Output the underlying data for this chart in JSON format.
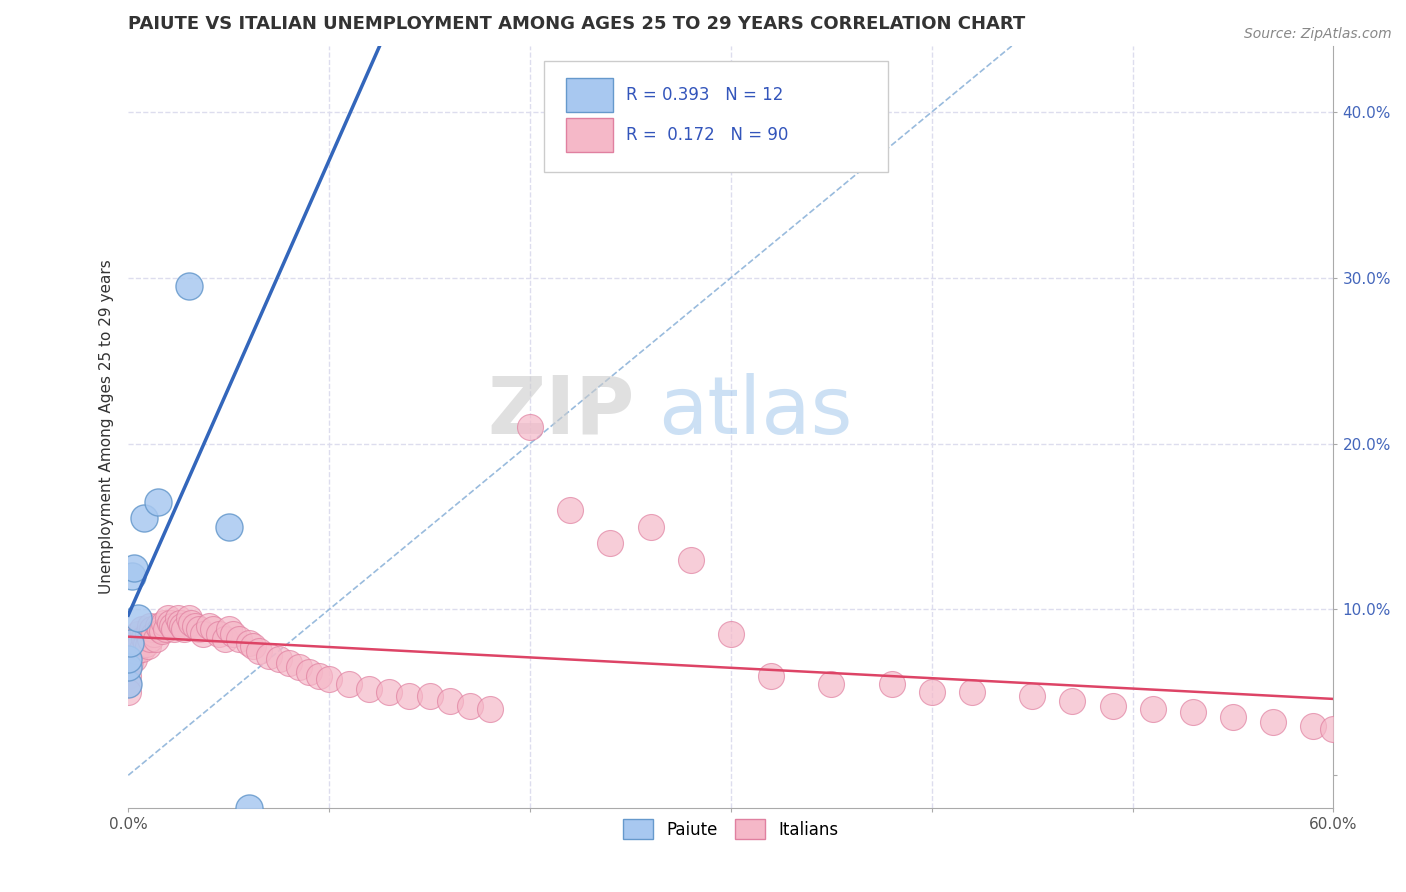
{
  "title": "PAIUTE VS ITALIAN UNEMPLOYMENT AMONG AGES 25 TO 29 YEARS CORRELATION CHART",
  "source_text": "Source: ZipAtlas.com",
  "ylabel": "Unemployment Among Ages 25 to 29 years",
  "xlim": [
    0.0,
    0.6
  ],
  "ylim": [
    0.0,
    0.44
  ],
  "xticks": [
    0.0,
    0.1,
    0.2,
    0.3,
    0.4,
    0.5,
    0.6
  ],
  "yticks": [
    0.0,
    0.1,
    0.2,
    0.3,
    0.4
  ],
  "xticklabels": [
    "0.0%",
    "",
    "",
    "",
    "",
    "",
    "60.0%"
  ],
  "yticklabels": [
    "",
    "10.0%",
    "20.0%",
    "30.0%",
    "40.0%"
  ],
  "paiute_color": "#a8c8f0",
  "paiute_edge_color": "#6699cc",
  "italian_color": "#f5b8c8",
  "italian_edge_color": "#e080a0",
  "paiute_R": 0.393,
  "paiute_N": 12,
  "italian_R": 0.172,
  "italian_N": 90,
  "paiute_line_color": "#3366bb",
  "italian_line_color": "#dd4466",
  "diagonal_color": "#99bbdd",
  "watermark_zip": "ZIP",
  "watermark_atlas": "atlas",
  "background_color": "#ffffff",
  "grid_color": "#ddddee",
  "paiute_x": [
    0.0,
    0.0,
    0.0,
    0.001,
    0.002,
    0.003,
    0.005,
    0.008,
    0.015,
    0.03,
    0.05,
    0.06
  ],
  "paiute_y": [
    0.055,
    0.065,
    0.07,
    0.08,
    0.12,
    0.125,
    0.095,
    0.155,
    0.165,
    0.295,
    0.15,
    -0.02
  ],
  "italian_x": [
    0.0,
    0.0,
    0.0,
    0.0,
    0.0,
    0.001,
    0.001,
    0.002,
    0.002,
    0.003,
    0.003,
    0.004,
    0.004,
    0.005,
    0.005,
    0.006,
    0.007,
    0.007,
    0.008,
    0.009,
    0.01,
    0.01,
    0.011,
    0.011,
    0.012,
    0.013,
    0.014,
    0.015,
    0.016,
    0.017,
    0.018,
    0.019,
    0.02,
    0.021,
    0.022,
    0.023,
    0.025,
    0.026,
    0.027,
    0.028,
    0.03,
    0.031,
    0.033,
    0.035,
    0.037,
    0.04,
    0.042,
    0.045,
    0.048,
    0.05,
    0.052,
    0.055,
    0.06,
    0.062,
    0.065,
    0.07,
    0.075,
    0.08,
    0.085,
    0.09,
    0.095,
    0.1,
    0.11,
    0.12,
    0.13,
    0.14,
    0.15,
    0.16,
    0.17,
    0.18,
    0.2,
    0.22,
    0.24,
    0.26,
    0.28,
    0.3,
    0.32,
    0.35,
    0.38,
    0.4,
    0.42,
    0.45,
    0.47,
    0.49,
    0.51,
    0.53,
    0.55,
    0.57,
    0.59,
    0.6
  ],
  "italian_y": [
    0.07,
    0.065,
    0.06,
    0.055,
    0.05,
    0.075,
    0.068,
    0.08,
    0.072,
    0.078,
    0.07,
    0.082,
    0.075,
    0.085,
    0.078,
    0.08,
    0.088,
    0.076,
    0.083,
    0.079,
    0.085,
    0.078,
    0.09,
    0.082,
    0.088,
    0.085,
    0.082,
    0.09,
    0.088,
    0.087,
    0.092,
    0.088,
    0.095,
    0.092,
    0.09,
    0.088,
    0.095,
    0.092,
    0.09,
    0.088,
    0.095,
    0.092,
    0.09,
    0.088,
    0.085,
    0.09,
    0.088,
    0.085,
    0.082,
    0.088,
    0.085,
    0.082,
    0.08,
    0.078,
    0.075,
    0.072,
    0.07,
    0.068,
    0.065,
    0.062,
    0.06,
    0.058,
    0.055,
    0.052,
    0.05,
    0.048,
    0.048,
    0.045,
    0.042,
    0.04,
    0.21,
    0.16,
    0.14,
    0.15,
    0.13,
    0.085,
    0.06,
    0.055,
    0.055,
    0.05,
    0.05,
    0.048,
    0.045,
    0.042,
    0.04,
    0.038,
    0.035,
    0.032,
    0.03,
    0.028
  ]
}
